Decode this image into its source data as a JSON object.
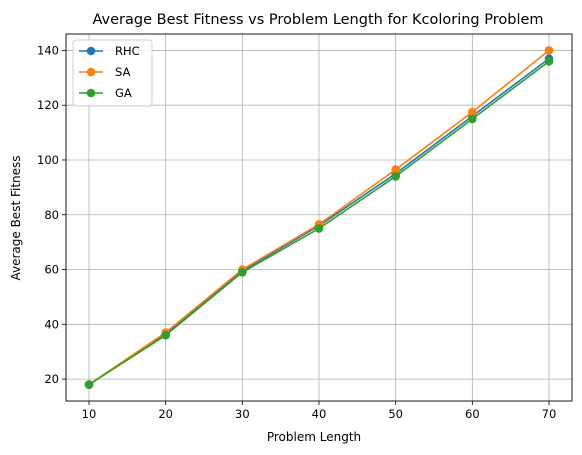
{
  "chart_data": {
    "type": "line",
    "title": "Average Best Fitness vs Problem Length for Kcoloring Problem",
    "xlabel": "Problem Length",
    "ylabel": "Average Best Fitness",
    "x": [
      10,
      20,
      30,
      40,
      50,
      60,
      70
    ],
    "xlim": [
      7,
      73
    ],
    "ylim": [
      12,
      146
    ],
    "xticks": [
      10,
      20,
      30,
      40,
      50,
      60,
      70
    ],
    "yticks": [
      20,
      40,
      60,
      80,
      100,
      120,
      140
    ],
    "grid": true,
    "legend_position": "top-left",
    "series": [
      {
        "name": "RHC",
        "color": "#1f77b4",
        "values": [
          18,
          36.5,
          59.5,
          76,
          95,
          116,
          137
        ]
      },
      {
        "name": "SA",
        "color": "#ff7f0e",
        "values": [
          18,
          37,
          60,
          76.5,
          96.5,
          117.5,
          140
        ]
      },
      {
        "name": "GA",
        "color": "#2ca02c",
        "values": [
          18,
          36,
          59,
          75,
          94,
          115,
          136
        ]
      }
    ]
  }
}
